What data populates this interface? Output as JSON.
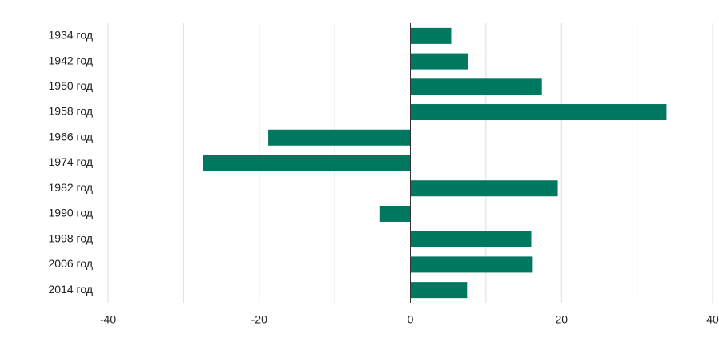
{
  "chart_data": {
    "type": "barh",
    "categories": [
      "1934 год",
      "1942 год",
      "1950 год",
      "1958 год",
      "1966 год",
      "1974 год",
      "1982 год",
      "1990 год",
      "1998 год",
      "2006 год",
      "2014 год"
    ],
    "values": [
      5.4,
      7.6,
      17.4,
      33.9,
      -18.8,
      -27.4,
      19.5,
      -4.1,
      16.0,
      16.2,
      7.5
    ],
    "color": "#00775f",
    "xlim": [
      -40,
      40
    ],
    "xticks": [
      -40,
      -20,
      0,
      20,
      40
    ],
    "minor_xticks": [
      -30,
      -10,
      10,
      30
    ],
    "grid": true
  }
}
